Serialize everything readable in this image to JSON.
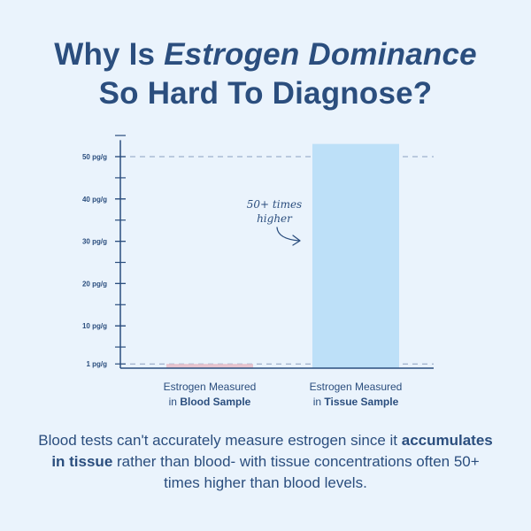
{
  "header": {
    "title_part1": "Why Is ",
    "title_italic": "Estrogen Dominance",
    "title_line2": "So Hard To Diagnose?"
  },
  "caption": {
    "part1": "Blood tests can't accurately measure estrogen since it ",
    "bold": "accumulates in tissue",
    "part2": " rather than blood- with tissue concentrations often 50+ times higher than blood levels."
  },
  "annotation": {
    "line1": "50+ times",
    "line2": "higher"
  },
  "chart_data": {
    "type": "bar",
    "categories": [
      {
        "line1": "Estrogen Measured",
        "line2_prefix": "in ",
        "line2_bold": "Blood Sample"
      },
      {
        "line1": "Estrogen Measured",
        "line2_prefix": "in ",
        "line2_bold": "Tissue Sample"
      }
    ],
    "values": [
      1,
      53
    ],
    "colors": [
      "#e8c4cf",
      "#bde0f8"
    ],
    "ylim": [
      0,
      56
    ],
    "yticks_labeled": [
      {
        "value": 1,
        "label": "1 pg/g"
      },
      {
        "value": 10,
        "label": "10 pg/g"
      },
      {
        "value": 20,
        "label": "20 pg/g"
      },
      {
        "value": 30,
        "label": "30 pg/g"
      },
      {
        "value": 40,
        "label": "40 pg/g"
      },
      {
        "value": 50,
        "label": "50 pg/g"
      }
    ],
    "reference_lines": [
      1,
      50
    ],
    "axis_color": "#2b4e7e",
    "dash_color": "#8aa0bf"
  }
}
